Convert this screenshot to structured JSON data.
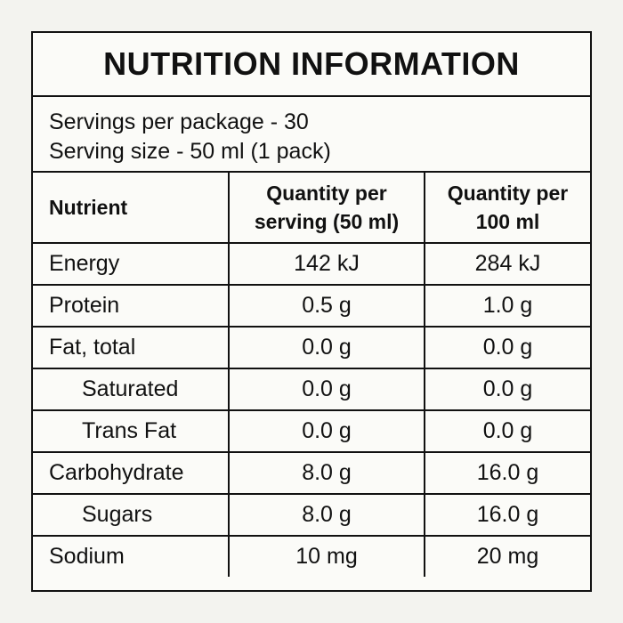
{
  "title": "NUTRITION INFORMATION",
  "servings": {
    "per_package": "Servings per package - 30",
    "size": "Serving size - 50 ml (1 pack)"
  },
  "table": {
    "header": [
      "Nutrient",
      "Quantity per\nserving (50 ml)",
      "Quantity per\n100 ml"
    ],
    "rows": [
      {
        "cells": [
          "Energy",
          "142 kJ",
          "284 kJ"
        ],
        "indent": false
      },
      {
        "cells": [
          "Protein",
          "0.5 g",
          "1.0 g"
        ],
        "indent": false
      },
      {
        "cells": [
          "Fat, total",
          "0.0 g",
          "0.0 g"
        ],
        "indent": false
      },
      {
        "cells": [
          "Saturated",
          "0.0 g",
          "0.0 g"
        ],
        "indent": true
      },
      {
        "cells": [
          "Trans Fat",
          "0.0 g",
          "0.0 g"
        ],
        "indent": true
      },
      {
        "cells": [
          "Carbohydrate",
          "8.0 g",
          "16.0 g"
        ],
        "indent": false
      },
      {
        "cells": [
          "Sugars",
          "8.0 g",
          "16.0 g"
        ],
        "indent": true
      },
      {
        "cells": [
          "Sodium",
          "10 mg",
          "20 mg"
        ],
        "indent": false
      }
    ]
  }
}
